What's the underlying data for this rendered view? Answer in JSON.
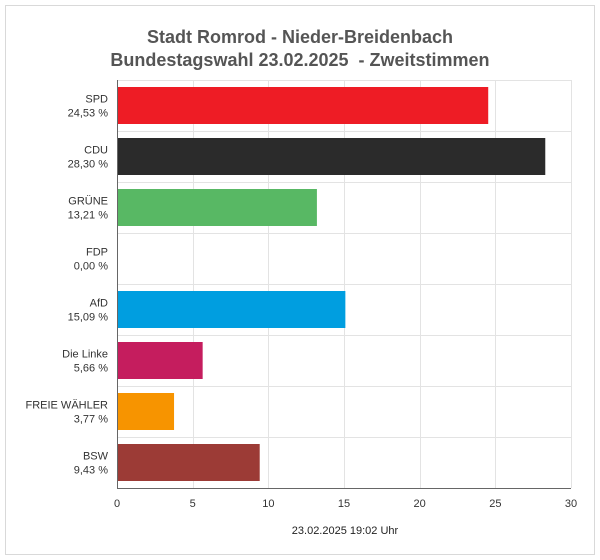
{
  "title": {
    "line1": "Stadt Romrod - Nieder-Breidenbach",
    "line2": "Bundestagswahl 23.02.2025  - Zweitstimmen"
  },
  "footer": "23.02.2025 19:02 Uhr",
  "chart_data": {
    "type": "bar",
    "orientation": "horizontal",
    "categories": [
      "SPD",
      "CDU",
      "GRÜNE",
      "FDP",
      "AfD",
      "Die Linke",
      "FREIE WÄHLER",
      "BSW"
    ],
    "category_labels": [
      "24,53 %",
      "28,30 %",
      "13,21 %",
      "0,00 %",
      "15,09 %",
      "5,66 %",
      "3,77 %",
      "9,43 %"
    ],
    "values": [
      24.53,
      28.3,
      13.21,
      0.0,
      15.09,
      5.66,
      3.77,
      9.43
    ],
    "colors": [
      "#ee1c25",
      "#2b2b2b",
      "#58b864",
      "#ffed00",
      "#009ee0",
      "#c51d5e",
      "#f79400",
      "#9c3b36"
    ],
    "xlim": [
      0,
      30
    ],
    "xticks": [
      "0",
      "5",
      "10",
      "15",
      "20",
      "25",
      "30"
    ],
    "grid": true
  }
}
